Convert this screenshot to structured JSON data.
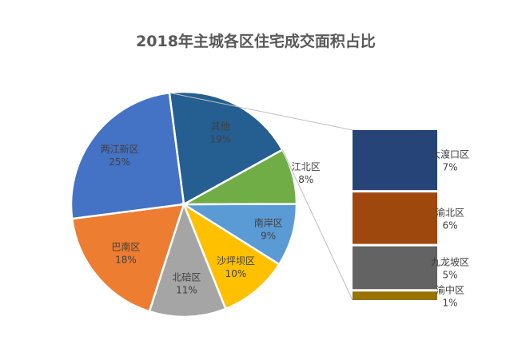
{
  "chart_data": {
    "type": "pie",
    "title": "2018年主城各区住宅成交面积占比",
    "slices": [
      {
        "label": "其他",
        "value": 19,
        "value_label": "19%",
        "color": "#255E91"
      },
      {
        "label": "两江新区",
        "value": 25,
        "value_label": "25%",
        "color": "#4472C4"
      },
      {
        "label": "巴南区",
        "value": 18,
        "value_label": "18%",
        "color": "#ED7D31"
      },
      {
        "label": "北碚区",
        "value": 11,
        "value_label": "11%",
        "color": "#A5A5A5"
      },
      {
        "label": "沙坪坝区",
        "value": 10,
        "value_label": "10%",
        "color": "#FFC000"
      },
      {
        "label": "南岸区",
        "value": 9,
        "value_label": "9%",
        "color": "#5B9BD5"
      },
      {
        "label": "江北区",
        "value": 8,
        "value_label": "8%",
        "color": "#70AD47"
      }
    ],
    "breakdown": {
      "of": "其他",
      "items": [
        {
          "label": "大渡口区",
          "value": 7,
          "value_label": "7%",
          "color": "#264478"
        },
        {
          "label": "渝北区",
          "value": 6,
          "value_label": "6%",
          "color": "#9E480E"
        },
        {
          "label": "九龙坡区",
          "value": 5,
          "value_label": "5%",
          "color": "#636363"
        },
        {
          "label": "渝中区",
          "value": 1,
          "value_label": "1%",
          "color": "#997300"
        }
      ]
    }
  }
}
